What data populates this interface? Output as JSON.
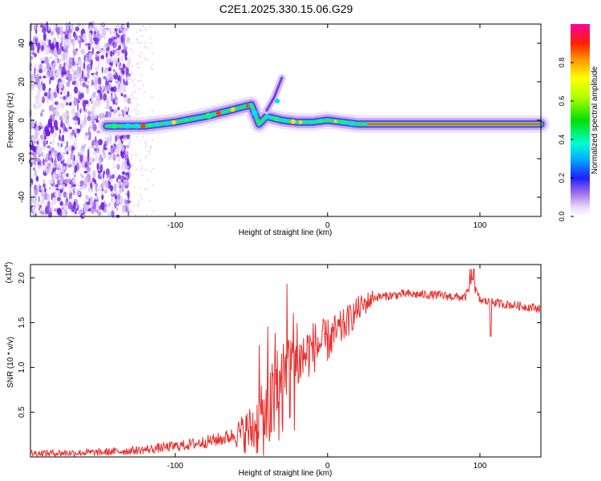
{
  "title": "C2E1.2025.330.15.06.G29",
  "chart_data": [
    {
      "type": "heatmap",
      "name": "spectrogram",
      "xlabel": "Height of straight line (km)",
      "ylabel": "Frequency (Hz)",
      "xlim": [
        -195,
        140
      ],
      "ylim": [
        -50,
        50
      ],
      "x_ticks": [
        -100,
        0,
        100
      ],
      "y_ticks": [
        -40,
        -20,
        0,
        20,
        40
      ],
      "colorbar": {
        "label": "Normalized spectral amplitude",
        "range": [
          0,
          1
        ],
        "ticks": [
          "0.0",
          "0.2",
          "0.4",
          "0.6",
          "0.8"
        ]
      },
      "ridge": {
        "description_points_x": [
          -145,
          -120,
          -100,
          -80,
          -60,
          -50,
          -45,
          -40,
          -30,
          -20,
          -10,
          0,
          20,
          50,
          80,
          100,
          140
        ],
        "description_points_y": [
          -3,
          -3,
          -1,
          2,
          6,
          8,
          -2,
          2,
          0,
          -1,
          -1,
          0,
          -2,
          -2,
          -2,
          -2,
          -2
        ],
        "upward_branch_x": [
          -40,
          -35,
          -30
        ],
        "upward_branch_y": [
          5,
          12,
          22
        ]
      },
      "noise_region_x": [
        -195,
        -130
      ]
    },
    {
      "type": "line",
      "name": "snr",
      "xlabel": "Height of straight line (km)",
      "ylabel": "SNR (10 * v/v)",
      "exponent_label": "(x10",
      "exponent": "4",
      "xlim": [
        -195,
        140
      ],
      "ylim": [
        0,
        2.15
      ],
      "x_ticks": [
        -100,
        0,
        100
      ],
      "y_ticks": [
        "0.5",
        "1.0",
        "1.5",
        "2.0"
      ],
      "color": "#e8302f",
      "trend_x": [
        -195,
        -150,
        -120,
        -90,
        -70,
        -50,
        -40,
        -30,
        -20,
        -10,
        0,
        10,
        20,
        30,
        50,
        70,
        90,
        95,
        100,
        110,
        120,
        140
      ],
      "trend_y": [
        0.04,
        0.05,
        0.08,
        0.14,
        0.2,
        0.3,
        0.45,
        0.8,
        1.05,
        1.22,
        1.3,
        1.45,
        1.65,
        1.78,
        1.82,
        1.81,
        1.78,
        1.95,
        1.75,
        1.72,
        1.7,
        1.66
      ]
    }
  ]
}
